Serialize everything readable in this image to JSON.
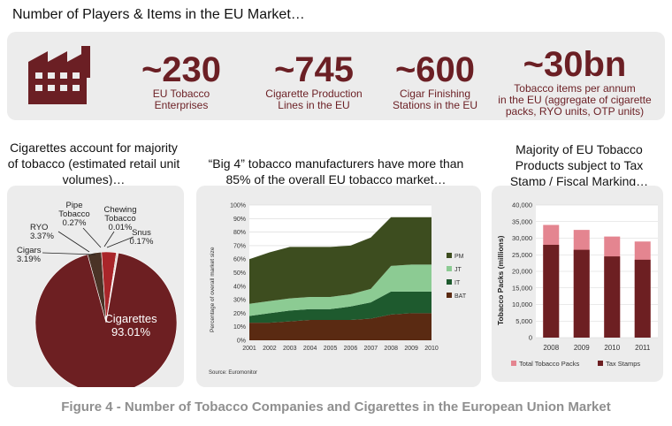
{
  "heading": "Number of Players & Items in the EU Market…",
  "stats": [
    {
      "value": "~230",
      "label_lines": [
        "EU Tobacco",
        "Enterprises"
      ]
    },
    {
      "value": "~745",
      "label_lines": [
        "Cigarette Production",
        "Lines in the EU"
      ]
    },
    {
      "value": "~600",
      "label_lines": [
        "Cigar Finishing",
        "Stations in the EU"
      ]
    },
    {
      "value": "~30bn",
      "label_lines": [
        "Tobacco items per annum",
        "in the EU (aggregate of cigarette",
        "packs, RYO units, OTP units)"
      ]
    }
  ],
  "subtitles": {
    "left": [
      "Cigarettes account for majority",
      "of tobacco (estimated retail unit",
      "volumes)…"
    ],
    "middle": [
      "“Big 4” tobacco manufacturers have more than",
      "85% of the overall EU tobacco market…"
    ],
    "right": [
      "Majority of EU Tobacco",
      "Products subject to Tax",
      "Stamp / Fiscal Marking…"
    ]
  },
  "caption": "Figure 4 - Number of Tobacco Companies and Cigarettes in the European Union Market",
  "colors": {
    "maroon": "#6b1f24",
    "pie_main": "#6d1f22",
    "pink": "#e48590",
    "pm": "#3d4d1f",
    "jt": "#8ccb93",
    "it": "#1e5a2e",
    "bat": "#5a2a12",
    "panel": "#ececec"
  },
  "chart_data": [
    {
      "type": "pie",
      "slices": [
        {
          "name": "Cigarettes",
          "value": 93.01,
          "label": "93.01%",
          "color": "#6d1f22"
        },
        {
          "name": "Cigars",
          "value": 3.19,
          "label": "3.19%",
          "color": "#4a3326"
        },
        {
          "name": "RYO",
          "value": 3.37,
          "label": "3.37%",
          "color": "#a9262a"
        },
        {
          "name": "Pipe Tobacco",
          "value": 0.27,
          "label": "0.27%",
          "color": "#c99b8a"
        },
        {
          "name": "Chewing Tobacco",
          "value": 0.01,
          "label": "0.01%",
          "color": "#e8d2c8"
        },
        {
          "name": "Snus",
          "value": 0.17,
          "label": "0.17%",
          "color": "#b0b0b0"
        }
      ],
      "labels": {
        "cigarettes": [
          "Cigarettes",
          "93.01%"
        ],
        "cigars": [
          "Cigars",
          "3.19%"
        ],
        "ryo": [
          "RYO",
          "3.37%"
        ],
        "pipe": [
          "Pipe",
          "Tobacco",
          "0.27%"
        ],
        "chewing": [
          "Chewing",
          "Tobacco",
          "0.01%"
        ],
        "snus": [
          "Snus",
          "0.17%"
        ]
      }
    },
    {
      "type": "area",
      "stacked": true,
      "x": [
        "2001",
        "2002",
        "2003",
        "2004",
        "2005",
        "2006",
        "2007",
        "2008",
        "2009",
        "2010"
      ],
      "ylabel": "Percentage of overall market size",
      "yticks": [
        "0%",
        "10%",
        "20%",
        "30%",
        "40%",
        "50%",
        "60%",
        "70%",
        "80%",
        "90%",
        "100%"
      ],
      "ylim": [
        0,
        100
      ],
      "source": "Source: Euromonitor",
      "legend_position": "right",
      "series": [
        {
          "name": "BAT",
          "color": "#5a2a12",
          "values": [
            13,
            13,
            14,
            15,
            15,
            15,
            16,
            19,
            20,
            20
          ]
        },
        {
          "name": "IT",
          "color": "#1e5a2e",
          "values": [
            5,
            7,
            8,
            8,
            8,
            10,
            12,
            17,
            16,
            16
          ]
        },
        {
          "name": "JT",
          "color": "#8ccb93",
          "values": [
            9,
            9,
            9,
            9,
            9,
            9,
            10,
            19,
            20,
            20
          ]
        },
        {
          "name": "PM",
          "color": "#3d4d1f",
          "values": [
            33,
            36,
            38,
            37,
            37,
            36,
            38,
            36,
            35,
            35
          ]
        }
      ],
      "legend_order": [
        "PM",
        "JT",
        "IT",
        "BAT"
      ]
    },
    {
      "type": "bar",
      "categories": [
        "2008",
        "2009",
        "2010",
        "2011"
      ],
      "ylabel": "Tobacco Packs (millions)",
      "yticks": [
        "0",
        "5,000",
        "10,000",
        "15,000",
        "20,000",
        "25,000",
        "30,000",
        "35,000",
        "40,000"
      ],
      "ylim": [
        0,
        40000
      ],
      "legend_position": "bottom",
      "series": [
        {
          "name": "Total Tobacco Packs",
          "color": "#e48590",
          "values": [
            34000,
            32500,
            30500,
            29000
          ]
        },
        {
          "name": "Tax Stamps",
          "color": "#6d1f22",
          "values": [
            28000,
            26500,
            24500,
            23500
          ]
        }
      ]
    }
  ]
}
